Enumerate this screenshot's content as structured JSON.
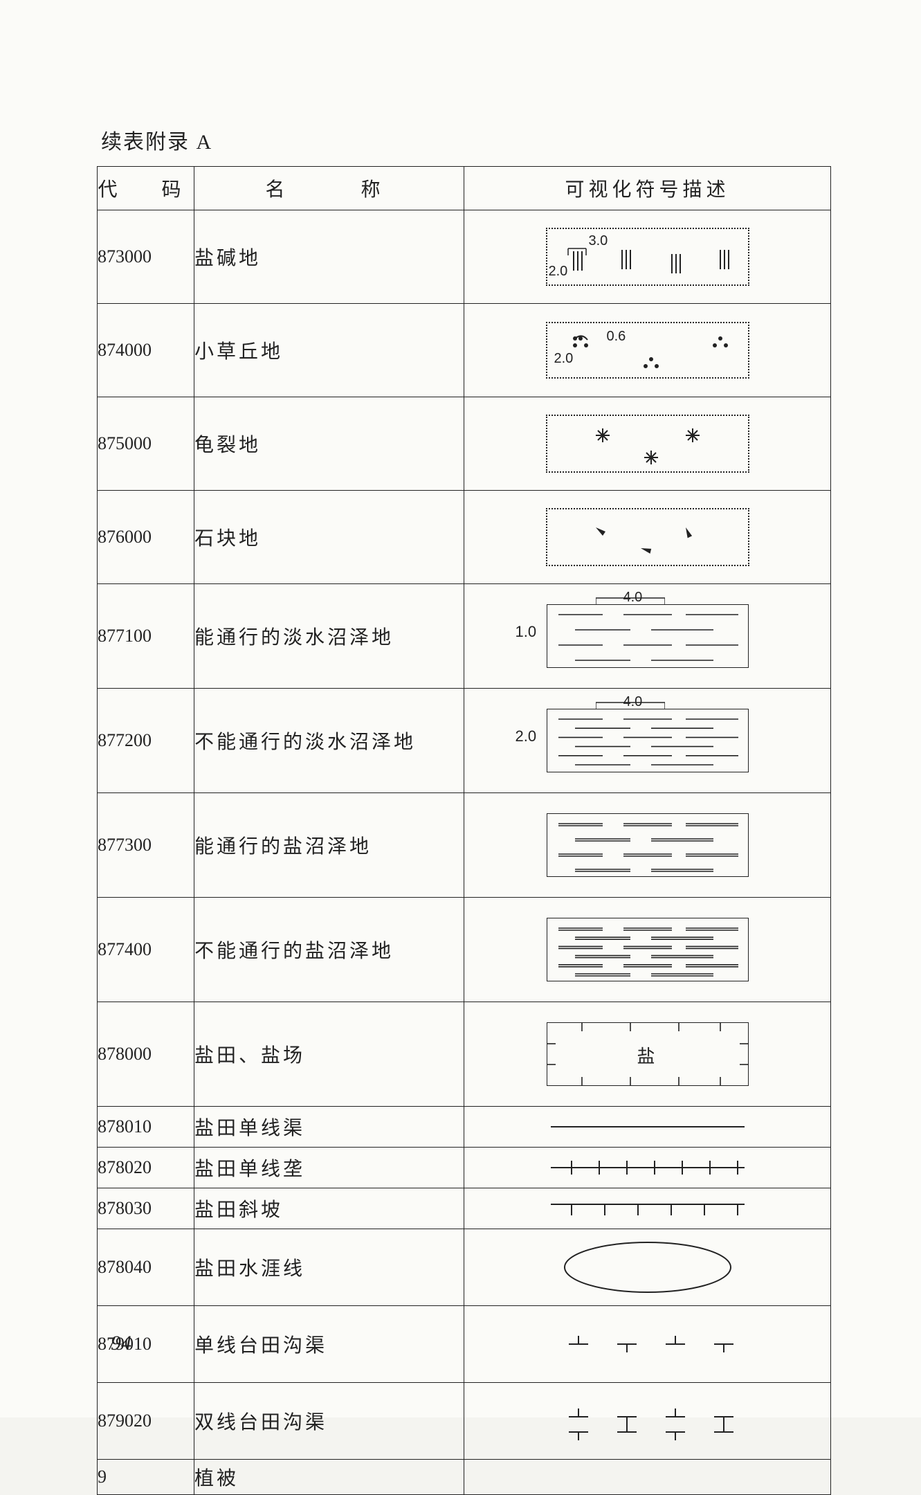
{
  "title": "续表附录 A",
  "columns": {
    "code": "代　码",
    "name": "名　　称",
    "desc": "可视化符号描述"
  },
  "rows": [
    {
      "code": "873000",
      "name": "盐碱地",
      "symbol": "saline",
      "h": "tall",
      "dims": [
        "3.0",
        "2.0"
      ]
    },
    {
      "code": "874000",
      "name": "小草丘地",
      "symbol": "grass_mound",
      "h": "tall",
      "dims": [
        "0.6",
        "2.0"
      ]
    },
    {
      "code": "875000",
      "name": "龟裂地",
      "symbol": "cracked",
      "h": "tall"
    },
    {
      "code": "876000",
      "name": "石块地",
      "symbol": "rocky",
      "h": "tall"
    },
    {
      "code": "877100",
      "name": "能通行的淡水沼泽地",
      "symbol": "marsh_pass",
      "h": "tall2",
      "dims": [
        "4.0",
        "1.0"
      ]
    },
    {
      "code": "877200",
      "name": "不能通行的淡水沼泽地",
      "symbol": "marsh_nopass",
      "h": "tall2",
      "dims": [
        "4.0",
        "2.0"
      ]
    },
    {
      "code": "877300",
      "name": "能通行的盐沼泽地",
      "symbol": "saltmarsh_pass",
      "h": "tall2"
    },
    {
      "code": "877400",
      "name": "不能通行的盐沼泽地",
      "symbol": "saltmarsh_no",
      "h": "tall2"
    },
    {
      "code": "878000",
      "name": "盐田、盐场",
      "symbol": "saltpan",
      "h": "tall2",
      "label": "盐"
    },
    {
      "code": "878010",
      "name": "盐田单线渠",
      "symbol": "single_line",
      "h": "short"
    },
    {
      "code": "878020",
      "name": "盐田单线垄",
      "symbol": "line_ticks",
      "h": "short"
    },
    {
      "code": "878030",
      "name": "盐田斜坡",
      "symbol": "line_down",
      "h": "short"
    },
    {
      "code": "878040",
      "name": "盐田水涯线",
      "symbol": "ellipse",
      "h": "med"
    },
    {
      "code": "879010",
      "name": "单线台田沟渠",
      "symbol": "field_single",
      "h": "med"
    },
    {
      "code": "879020",
      "name": "双线台田沟渠",
      "symbol": "field_double",
      "h": "med"
    },
    {
      "code": "9",
      "name": "植被",
      "symbol": "none",
      "h": "xshort"
    }
  ],
  "page_number": "94",
  "colors": {
    "ink": "#222222",
    "paper": "#fbfbf8"
  }
}
